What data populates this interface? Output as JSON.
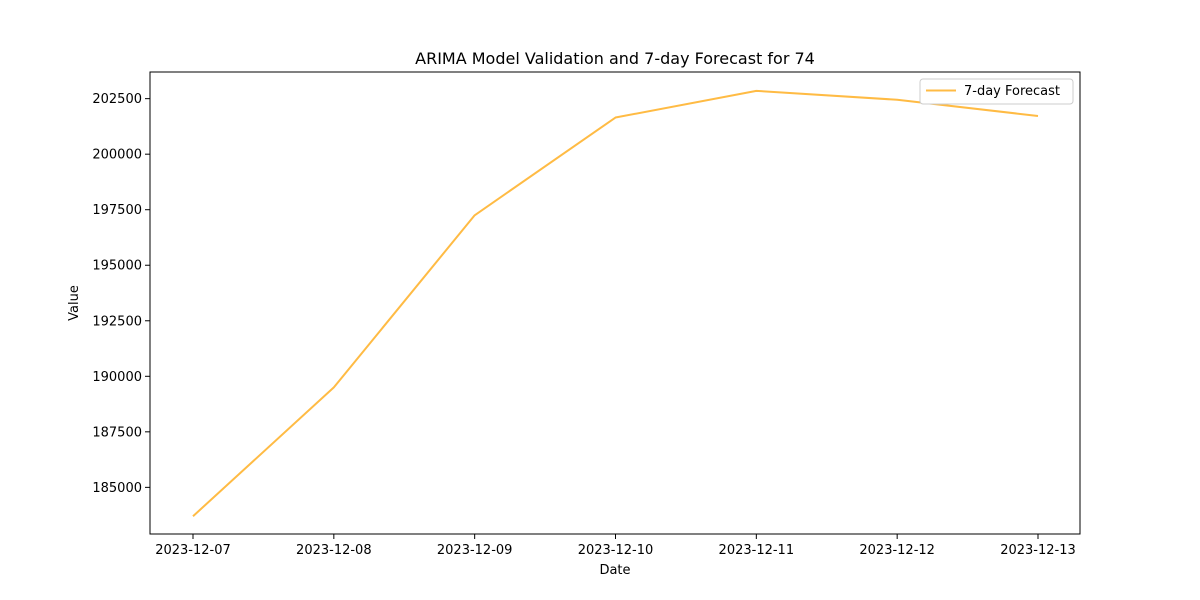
{
  "chart_data": {
    "type": "line",
    "title": "ARIMA Model Validation and 7-day Forecast for 74",
    "xlabel": "Date",
    "ylabel": "Value",
    "x": [
      "2023-12-07",
      "2023-12-08",
      "2023-12-09",
      "2023-12-10",
      "2023-12-11",
      "2023-12-12",
      "2023-12-13"
    ],
    "series": [
      {
        "name": "7-day Forecast",
        "color": "#ffbb44",
        "values": [
          183700,
          189500,
          197250,
          201650,
          202850,
          202450,
          201720
        ]
      }
    ],
    "yticks": [
      185000,
      187500,
      190000,
      192500,
      195000,
      197500,
      200000,
      202500
    ],
    "ylim": [
      182900,
      203700
    ],
    "grid": false,
    "legend_position": "top-right"
  }
}
